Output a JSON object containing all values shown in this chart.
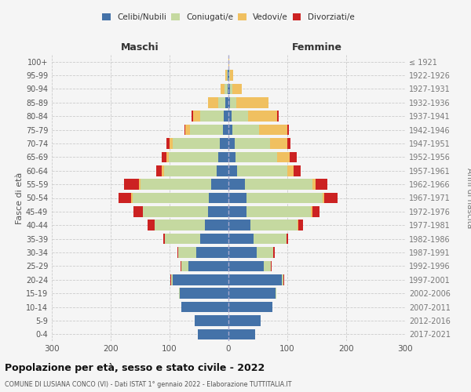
{
  "age_groups_bottom_to_top": [
    "0-4",
    "5-9",
    "10-14",
    "15-19",
    "20-24",
    "25-29",
    "30-34",
    "35-39",
    "40-44",
    "45-49",
    "50-54",
    "55-59",
    "60-64",
    "65-69",
    "70-74",
    "75-79",
    "80-84",
    "85-89",
    "90-94",
    "95-99",
    "100+"
  ],
  "birth_years_bottom_to_top": [
    "2017-2021",
    "2012-2016",
    "2007-2011",
    "2002-2006",
    "1997-2001",
    "1992-1996",
    "1987-1991",
    "1982-1986",
    "1977-1981",
    "1972-1976",
    "1967-1971",
    "1962-1966",
    "1957-1961",
    "1952-1956",
    "1947-1951",
    "1942-1946",
    "1937-1941",
    "1932-1936",
    "1927-1931",
    "1922-1926",
    "≤ 1921"
  ],
  "male": {
    "celibi": [
      52,
      58,
      80,
      83,
      95,
      68,
      55,
      48,
      40,
      35,
      33,
      30,
      20,
      17,
      15,
      10,
      8,
      5,
      2,
      1,
      0
    ],
    "coniugati": [
      0,
      0,
      0,
      1,
      3,
      12,
      30,
      60,
      85,
      110,
      130,
      120,
      90,
      85,
      80,
      55,
      40,
      12,
      5,
      2,
      0
    ],
    "vedovi": [
      0,
      0,
      0,
      0,
      0,
      0,
      0,
      0,
      0,
      1,
      2,
      2,
      3,
      4,
      5,
      8,
      12,
      18,
      6,
      2,
      0
    ],
    "divorziati": [
      0,
      0,
      0,
      0,
      1,
      2,
      2,
      3,
      12,
      15,
      22,
      25,
      10,
      8,
      5,
      2,
      3,
      0,
      0,
      0,
      0
    ]
  },
  "female": {
    "nubili": [
      45,
      55,
      75,
      80,
      90,
      60,
      48,
      43,
      37,
      30,
      30,
      28,
      15,
      12,
      10,
      7,
      5,
      3,
      2,
      1,
      0
    ],
    "coniugate": [
      0,
      0,
      0,
      1,
      3,
      12,
      28,
      55,
      80,
      110,
      130,
      115,
      85,
      70,
      60,
      45,
      28,
      10,
      5,
      2,
      0
    ],
    "vedove": [
      0,
      0,
      0,
      0,
      0,
      0,
      0,
      0,
      1,
      2,
      3,
      5,
      10,
      22,
      30,
      48,
      50,
      55,
      15,
      5,
      1
    ],
    "divorziate": [
      0,
      0,
      0,
      0,
      1,
      1,
      2,
      3,
      8,
      13,
      22,
      20,
      12,
      12,
      5,
      3,
      2,
      0,
      0,
      0,
      0
    ]
  },
  "colors": {
    "celibi": "#4472a8",
    "coniugati": "#c5d9a0",
    "vedovi": "#f0c060",
    "divorziati": "#cc2222"
  },
  "xlim": 300,
  "title": "Popolazione per età, sesso e stato civile - 2022",
  "subtitle": "COMUNE DI LUSIANA CONCO (VI) - Dati ISTAT 1° gennaio 2022 - Elaborazione TUTTITALIA.IT",
  "ylabel_left": "Fasce di età",
  "ylabel_right": "Anni di nascita",
  "xlabel_male": "Maschi",
  "xlabel_female": "Femmine",
  "bg_color": "#f5f5f5",
  "grid_color": "#cccccc",
  "legend_labels": [
    "Celibi/Nubili",
    "Coniugati/e",
    "Vedovi/e",
    "Divorziati/e"
  ]
}
